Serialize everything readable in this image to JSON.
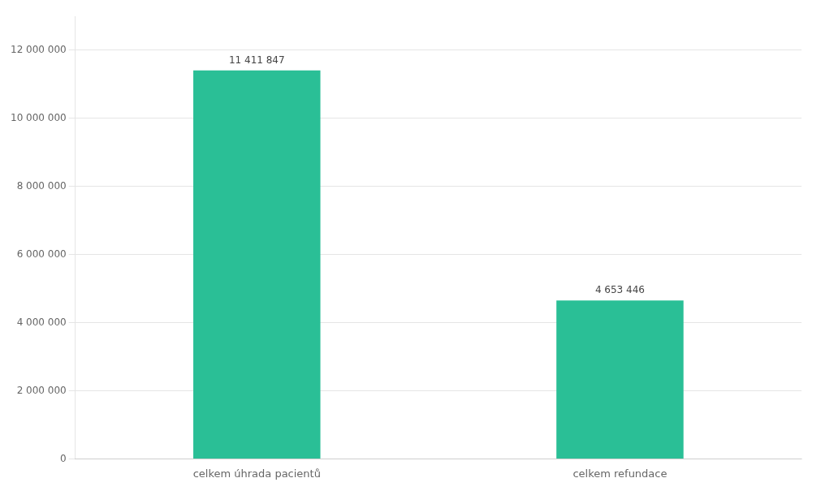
{
  "chart_data": {
    "type": "bar",
    "categories": [
      "celkem úhrada pacientů",
      "celkem refundace"
    ],
    "values": [
      11411847,
      4653446
    ],
    "value_labels": [
      "11 411 847",
      "4 653 446"
    ],
    "data_labels": true,
    "color": "#2abf96",
    "ylim": [
      0,
      13000000
    ],
    "yticks": [
      0,
      {
        "value": 2000000,
        "label": "2 000 000"
      },
      {
        "value": 4000000,
        "label": "4 000 000"
      },
      {
        "value": 6000000,
        "label": "6 000 000"
      },
      {
        "value": 8000000,
        "label": "8 000 000"
      },
      {
        "value": 10000000,
        "label": "10 000 000"
      },
      {
        "value": 12000000,
        "label": "12 000 000"
      }
    ],
    "grid": true
  }
}
